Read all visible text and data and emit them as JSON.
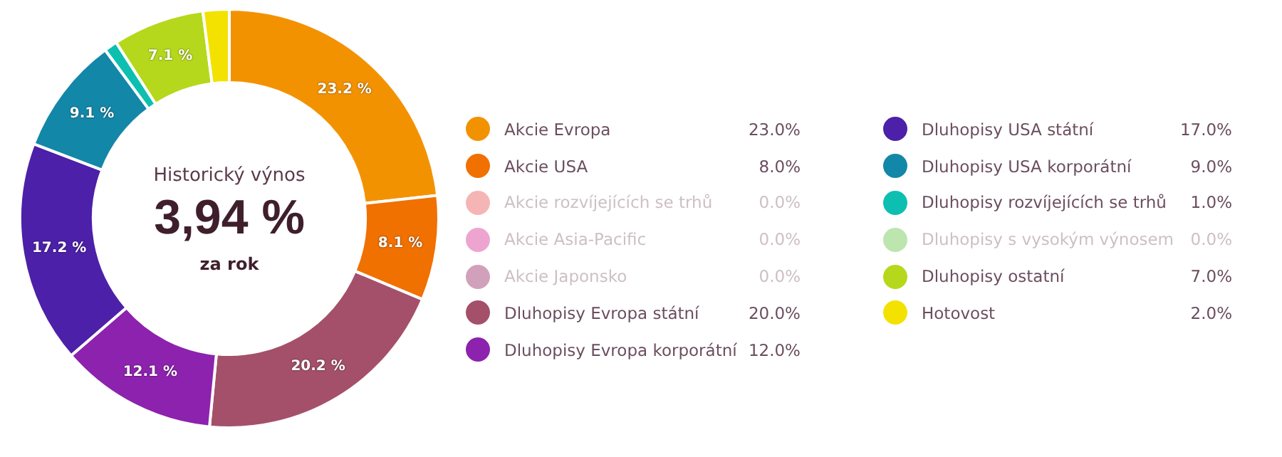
{
  "chart_data": {
    "type": "donut",
    "subtitle": "Historický výnos",
    "title": "3,94 %",
    "categories": [
      "Akcie Evropa",
      "Akcie USA",
      "Akcie rozvíjejících se trhů",
      "Akcie Asia-Pacific",
      "Akcie Japonsko",
      "Dluhopisy Evropa státní",
      "Dluhopisy Evropa korporátní",
      "Dluhopisy USA státní",
      "Dluhopisy USA korporátní",
      "Dluhopisy rozvíjejících se trhů",
      "Dluhopisy s vysokým výnosem",
      "Dluhopisy ostatní",
      "Hotovost"
    ],
    "values": [
      23,
      8,
      0,
      0,
      0,
      20,
      12,
      17,
      9,
      1,
      0,
      7,
      2
    ],
    "colors": [
      "#f39200",
      "#f07000",
      "#f4a3a3",
      "#e88fc4",
      "#c58aab",
      "#a4506a",
      "#8c22ad",
      "#4c20a8",
      "#1387a8",
      "#0dbfb0",
      "#addf9a",
      "#b5d81c",
      "#f3e200"
    ],
    "value_labels": [
      "23.0%",
      "8.0%",
      "0.0%",
      "0.0%",
      "0.0%",
      "20.0%",
      "12.0%",
      "17.0%",
      "9.0%",
      "1.0%",
      "0.0%",
      "7.0%",
      "2.0%"
    ],
    "legend": "right",
    "annotations": [
      "za rok",
      {
        "text": "23.2 %",
        "x": "Akcie Evropa"
      },
      {
        "text": "8.1 %",
        "x": "Akcie USA"
      },
      {
        "text": "20.2 %",
        "x": "Dluhopisy Evropa státní"
      },
      {
        "text": "12.1 %",
        "x": "Dluhopisy Evropa korporátní"
      },
      {
        "text": "17.2 %",
        "x": "Dluhopisy USA státní"
      },
      {
        "text": "9.1 %",
        "x": "Dluhopisy USA korporátní"
      },
      {
        "text": "7.1 %",
        "x": "Dluhopisy ostatní"
      }
    ]
  }
}
